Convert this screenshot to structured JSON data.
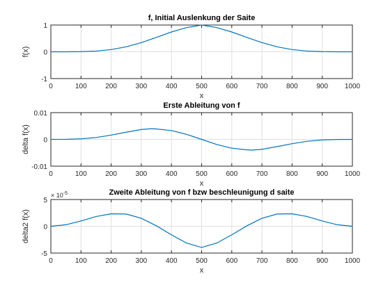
{
  "chart_data": [
    {
      "type": "line",
      "title": "f, Initial Auslenkung der Saite",
      "xlabel": "x",
      "ylabel": "f(x)",
      "xlim": [
        0,
        1000
      ],
      "ylim": [
        -1,
        1
      ],
      "xticks": [
        0,
        100,
        200,
        300,
        400,
        500,
        600,
        700,
        800,
        900,
        1000
      ],
      "yticks": [
        -1,
        0,
        1
      ],
      "ytick_labels": [
        "-1",
        "0",
        "1"
      ],
      "exponent_label": "",
      "grid": true,
      "series": [
        {
          "name": "f(x)",
          "color": "#0072bd",
          "x": [
            0,
            50,
            100,
            150,
            200,
            250,
            300,
            350,
            400,
            450,
            500,
            550,
            600,
            650,
            700,
            750,
            800,
            850,
            900,
            950,
            1000
          ],
          "y": [
            0,
            0.0004,
            0.0057,
            0.0276,
            0.0833,
            0.1875,
            0.3432,
            0.538,
            0.7402,
            0.9051,
            1,
            0.9051,
            0.7402,
            0.538,
            0.3432,
            0.1875,
            0.0833,
            0.0276,
            0.0057,
            0.0004,
            0
          ]
        }
      ]
    },
    {
      "type": "line",
      "title": "Erste Ableitung von f",
      "xlabel": "x",
      "ylabel": "delta f(x)",
      "xlim": [
        0,
        1000
      ],
      "ylim": [
        -0.01,
        0.01
      ],
      "xticks": [
        0,
        100,
        200,
        300,
        400,
        500,
        600,
        700,
        800,
        900,
        1000
      ],
      "yticks": [
        -0.01,
        0,
        0.01
      ],
      "ytick_labels": [
        "-0.01",
        "0",
        "0.01"
      ],
      "exponent_label": "",
      "grid": true,
      "series": [
        {
          "name": "delta f(x)",
          "color": "#0072bd",
          "x": [
            0,
            50,
            100,
            150,
            200,
            250,
            300,
            333,
            350,
            400,
            450,
            500,
            550,
            600,
            650,
            667,
            700,
            750,
            800,
            850,
            900,
            950,
            1000
          ],
          "y": [
            0,
            3e-05,
            0.0002,
            0.0007,
            0.0016,
            0.0027,
            0.0037,
            0.004,
            0.0039,
            0.0033,
            0.0019,
            0,
            -0.0019,
            -0.0033,
            -0.0039,
            -0.004,
            -0.0037,
            -0.0027,
            -0.0016,
            -0.0007,
            -0.0002,
            -3e-05,
            0
          ]
        }
      ]
    },
    {
      "type": "line",
      "title": "Zweite Ableitung von f bzw beschleunigung d saite",
      "xlabel": "x",
      "ylabel": "delta2 f(x)",
      "xlim": [
        0,
        1000
      ],
      "ylim": [
        -5,
        5
      ],
      "xticks": [
        0,
        100,
        200,
        300,
        400,
        500,
        600,
        700,
        800,
        900,
        1000
      ],
      "yticks": [
        -5,
        0,
        5
      ],
      "ytick_labels": [
        "-5",
        "0",
        "5"
      ],
      "exponent_label": "× 10",
      "exponent_power": "-5",
      "grid": true,
      "series": [
        {
          "name": "delta2 f(x)",
          "color": "#0072bd",
          "x": [
            0,
            50,
            100,
            150,
            200,
            250,
            300,
            350,
            400,
            450,
            500,
            550,
            600,
            650,
            700,
            750,
            800,
            850,
            900,
            950,
            1000
          ],
          "y": [
            0,
            0.29,
            1.0,
            1.83,
            2.34,
            2.29,
            1.5,
            0.09,
            -1.59,
            -3.13,
            -3.95,
            -3.13,
            -1.59,
            0.09,
            1.5,
            2.29,
            2.34,
            1.83,
            1.0,
            0.29,
            0
          ]
        }
      ]
    }
  ]
}
